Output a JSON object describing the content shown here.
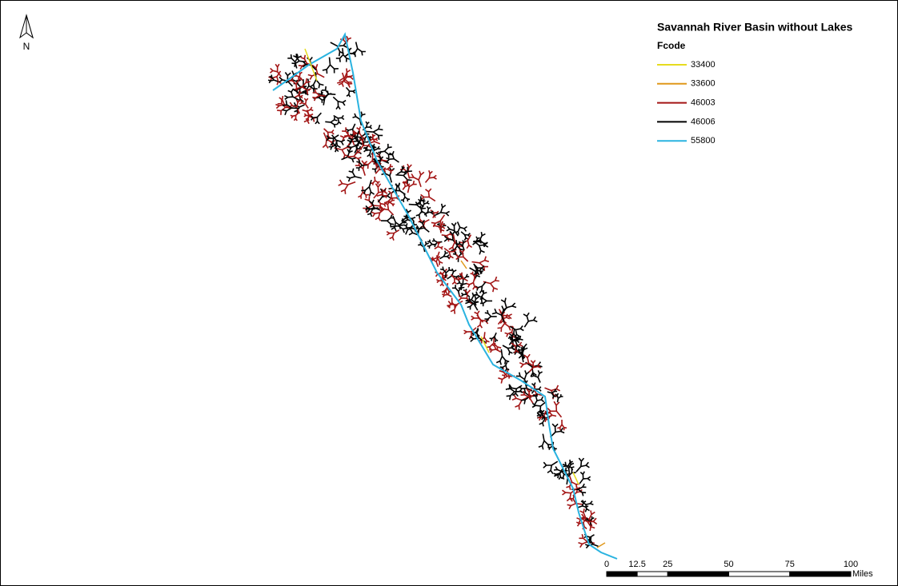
{
  "map": {
    "title": "Savannah River Basin without Lakes",
    "north_label": "N",
    "legend": {
      "title": "Fcode",
      "items": [
        {
          "label": "33400",
          "color": "#e6dc1e"
        },
        {
          "label": "33600",
          "color": "#e0981a"
        },
        {
          "label": "46003",
          "color": "#a31515"
        },
        {
          "label": "46006",
          "color": "#000000"
        },
        {
          "label": "55800",
          "color": "#2ab3e0"
        }
      ]
    },
    "scale_bar": {
      "ticks": [
        0,
        12.5,
        25,
        50,
        75,
        100
      ],
      "unit": "Miles"
    }
  }
}
